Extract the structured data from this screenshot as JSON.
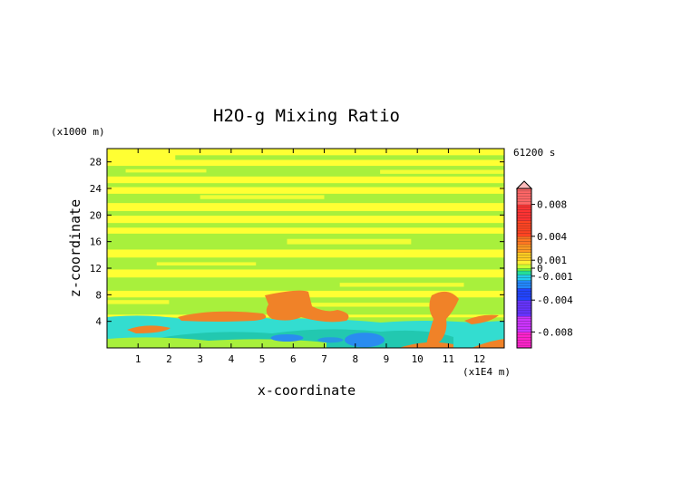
{
  "chart_data": {
    "type": "heatmap",
    "title": "H2O-g Mixing Ratio",
    "time_label": "61200 s",
    "y_unit_label": "(x1000 m)",
    "x_unit_label": "(x1E4 m)",
    "xlabel": "x-coordinate",
    "ylabel": "z-coordinate",
    "xlim": [
      0,
      12.8
    ],
    "ylim": [
      0,
      30
    ],
    "x_ticks": [
      "1",
      "2",
      "3",
      "4",
      "5",
      "6",
      "7",
      "8",
      "9",
      "10",
      "11",
      "12"
    ],
    "y_ticks": [
      "4",
      "8",
      "12",
      "16",
      "20",
      "24",
      "28"
    ],
    "colorbar": {
      "labels": [
        "0.008",
        "0.004",
        "0.001",
        "0",
        "-0.001",
        "-0.004",
        "-0.008"
      ],
      "label_values": [
        0.008,
        0.004,
        0.001,
        0,
        -0.001,
        -0.004,
        -0.008
      ],
      "range": [
        -0.01,
        0.01
      ]
    },
    "colors": {
      "background": "#ffff33",
      "green": "#a8f03c",
      "orange": "#f08228",
      "cyan": "#33ddd0",
      "teal": "#22c8b0",
      "blue": "#2a8cf0"
    }
  }
}
